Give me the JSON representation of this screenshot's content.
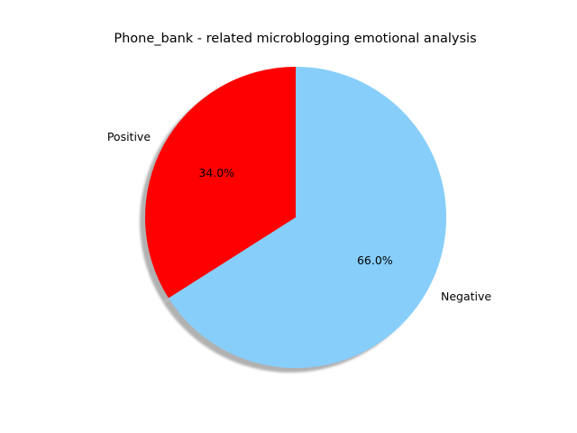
{
  "chart_data": {
    "type": "pie",
    "title": "Phone_bank - related microblogging emotional analysis",
    "slices": [
      {
        "label": "Positive",
        "value": 34.0,
        "pct_label": "34.0%",
        "color": "#ff0000"
      },
      {
        "label": "Negative",
        "value": 66.0,
        "pct_label": "66.0%",
        "color": "#87cefa"
      }
    ],
    "start_angle_deg": 90,
    "direction": "counterclockwise",
    "shadow": true,
    "legend": "none"
  }
}
